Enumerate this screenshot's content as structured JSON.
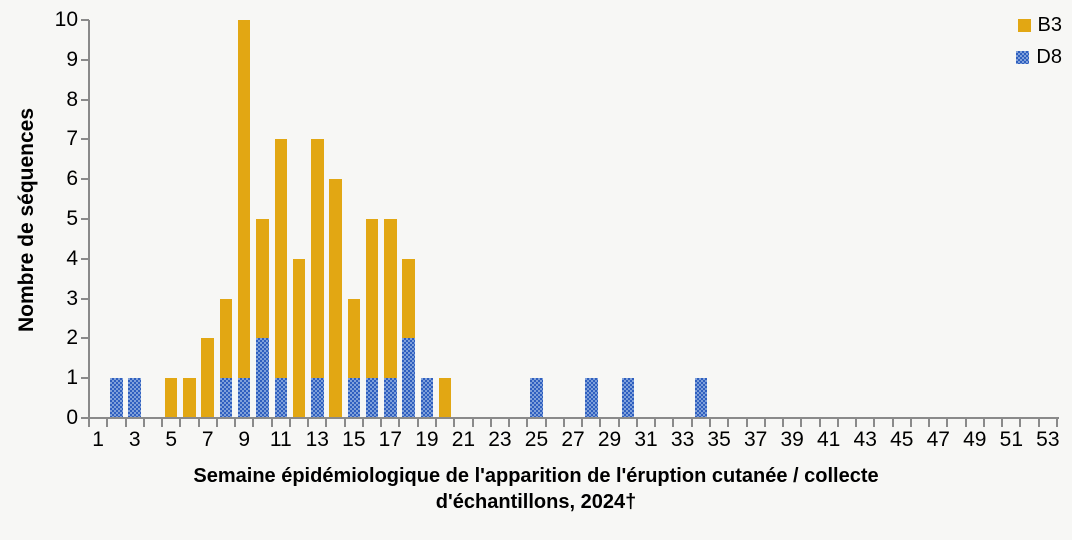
{
  "colors": {
    "background": "#F7F7F5",
    "axis": "#8A8A8A",
    "b3_gold": "#E2A713",
    "d8_blue_dark": "#2F5FBF",
    "d8_blue_light": "#7FA0DA",
    "text": "#000000"
  },
  "legend": {
    "items": [
      {
        "label": "B3",
        "swatch": "gold-solid-square"
      },
      {
        "label": "D8",
        "swatch": "blue-dotted-square"
      }
    ],
    "position": "top-right"
  },
  "chart_data": {
    "type": "bar",
    "stacked": true,
    "title": "",
    "xlabel": "Semaine épidémiologique de l'apparition de l'éruption cutanée / collecte d'échantillons, 2024†",
    "xlabel_lines": [
      "Semaine épidémiologique de l'apparition de l'éruption cutanée / collecte",
      "d'échantillons, 2024†"
    ],
    "ylabel": "Nombre de séquences",
    "ylim": [
      0,
      10
    ],
    "y_ticks": [
      0,
      1,
      2,
      3,
      4,
      5,
      6,
      7,
      8,
      9,
      10
    ],
    "x_tick_labels": [
      "1",
      "3",
      "5",
      "7",
      "9",
      "11",
      "13",
      "15",
      "17",
      "19",
      "21",
      "23",
      "25",
      "27",
      "29",
      "31",
      "33",
      "35",
      "37",
      "39",
      "41",
      "43",
      "45",
      "47",
      "49",
      "51",
      "53"
    ],
    "categories": [
      1,
      2,
      3,
      4,
      5,
      6,
      7,
      8,
      9,
      10,
      11,
      12,
      13,
      14,
      15,
      16,
      17,
      18,
      19,
      20,
      21,
      22,
      23,
      24,
      25,
      26,
      27,
      28,
      29,
      30,
      31,
      32,
      33,
      34,
      35,
      36,
      37,
      38,
      39,
      40,
      41,
      42,
      43,
      44,
      45,
      46,
      47,
      48,
      49,
      50,
      51,
      52,
      53
    ],
    "grid": false,
    "legend_position": "top-right",
    "stack_order_bottom_to_top": [
      "D8",
      "B3"
    ],
    "series": [
      {
        "name": "B3",
        "color": "#E2A713",
        "pattern": "solid",
        "values": [
          0,
          0,
          0,
          0,
          1,
          1,
          2,
          2,
          9,
          3,
          6,
          4,
          6,
          6,
          2,
          4,
          4,
          2,
          0,
          1,
          0,
          0,
          0,
          0,
          0,
          0,
          0,
          0,
          0,
          0,
          0,
          0,
          0,
          0,
          0,
          0,
          0,
          0,
          0,
          0,
          0,
          0,
          0,
          0,
          0,
          0,
          0,
          0,
          0,
          0,
          0,
          0,
          0
        ]
      },
      {
        "name": "D8",
        "color": "#2F5FBF",
        "color2": "#7FA0DA",
        "pattern": "checker-dot",
        "values": [
          0,
          1,
          1,
          0,
          0,
          0,
          0,
          1,
          1,
          2,
          1,
          0,
          1,
          0,
          1,
          1,
          1,
          2,
          1,
          0,
          0,
          0,
          0,
          0,
          1,
          0,
          0,
          1,
          0,
          1,
          0,
          0,
          0,
          1,
          0,
          0,
          0,
          0,
          0,
          0,
          0,
          0,
          0,
          0,
          0,
          0,
          0,
          0,
          0,
          0,
          0,
          0,
          0
        ]
      }
    ]
  }
}
